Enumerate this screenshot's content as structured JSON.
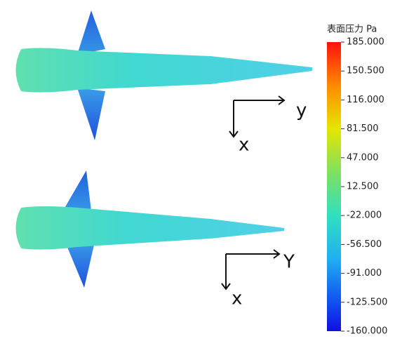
{
  "colorbar": {
    "title": "表面压力 Pa",
    "lim": [
      -160,
      185
    ],
    "ticks": [
      {
        "value": 185,
        "label": "185.000"
      },
      {
        "value": 150.5,
        "label": "150.500"
      },
      {
        "value": 116,
        "label": "116.000"
      },
      {
        "value": 81.5,
        "label": "81.500"
      },
      {
        "value": 47,
        "label": "47.000"
      },
      {
        "value": 12.5,
        "label": "12.500"
      },
      {
        "value": -22,
        "label": "-22.000"
      },
      {
        "value": -56.5,
        "label": "-56.500"
      },
      {
        "value": -91,
        "label": "-91.000"
      },
      {
        "value": -125.5,
        "label": "-125.500"
      },
      {
        "value": -160,
        "label": "-160.000"
      }
    ]
  },
  "axes_top": {
    "horizontal": "y",
    "vertical": "x"
  },
  "axes_bottom": {
    "horizontal": "Y",
    "vertical": "x"
  }
}
